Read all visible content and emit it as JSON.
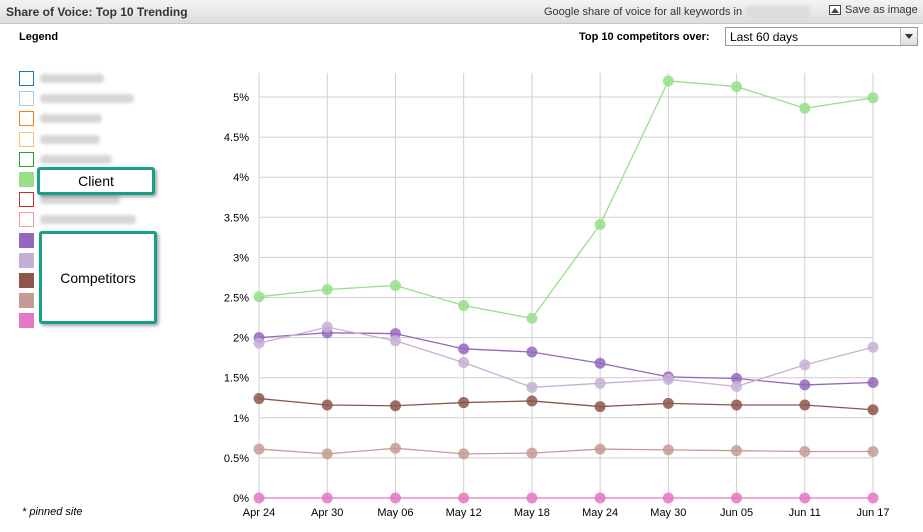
{
  "header": {
    "title": "Share of Voice: Top 10 Trending",
    "description": "Google share of voice for all keywords in",
    "save_label": "Save as image"
  },
  "legend": {
    "title": "Legend",
    "items": [
      {
        "color": "#1f77b4",
        "outline": true
      },
      {
        "color": "#aec7e8",
        "outline": true
      },
      {
        "color": "#ff7f0e",
        "outline": true
      },
      {
        "color": "#ffbb78",
        "outline": true
      },
      {
        "color": "#2ca02c",
        "outline": true
      },
      {
        "color": "#98df8a",
        "outline": false
      },
      {
        "color": "#d62728",
        "outline": true
      },
      {
        "color": "#ff9896",
        "outline": true
      },
      {
        "color": "#9467bd",
        "outline": false
      },
      {
        "color": "#c5b0d5",
        "outline": false
      },
      {
        "color": "#8c564b",
        "outline": false
      },
      {
        "color": "#c49c94",
        "outline": false
      },
      {
        "color": "#e377c2",
        "outline": false
      }
    ],
    "pinned_note": "* pinned site"
  },
  "controls": {
    "range_label": "Top 10 competitors over:",
    "range_value": "Last 60 days"
  },
  "annotations": {
    "client": "Client",
    "competitors": "Competitors"
  },
  "chart_data": {
    "type": "line",
    "x": [
      "Apr 24",
      "Apr 30",
      "May 06",
      "May 12",
      "May 18",
      "May 24",
      "May 30",
      "Jun 05",
      "Jun 11",
      "Jun 17"
    ],
    "ylim": [
      0,
      5.5
    ],
    "yticks": [
      "0%",
      "0.5%",
      "1%",
      "1.5%",
      "2%",
      "2.5%",
      "3%",
      "3.5%",
      "4%",
      "4.5%",
      "5%"
    ],
    "grid": true,
    "series": [
      {
        "color": "#98df8a",
        "values": [
          2.51,
          2.6,
          2.65,
          2.4,
          2.24,
          3.41,
          5.2,
          5.13,
          4.86,
          4.99
        ]
      },
      {
        "color": "#9467bd",
        "values": [
          2.0,
          2.06,
          2.05,
          1.86,
          1.82,
          1.68,
          1.51,
          1.49,
          1.41,
          1.44
        ]
      },
      {
        "color": "#c5b0d5",
        "values": [
          1.93,
          2.13,
          1.96,
          1.69,
          1.38,
          1.43,
          1.48,
          1.39,
          1.66,
          1.88
        ]
      },
      {
        "color": "#8c564b",
        "values": [
          1.24,
          1.16,
          1.15,
          1.19,
          1.21,
          1.14,
          1.18,
          1.16,
          1.16,
          1.1
        ]
      },
      {
        "color": "#c49c94",
        "values": [
          0.61,
          0.55,
          0.62,
          0.55,
          0.56,
          0.61,
          0.6,
          0.59,
          0.58,
          0.58
        ]
      },
      {
        "color": "#e377c2",
        "values": [
          0.0,
          0.0,
          0.0,
          0.0,
          0.0,
          0.0,
          0.0,
          0.0,
          0.0,
          0.0
        ]
      }
    ]
  }
}
